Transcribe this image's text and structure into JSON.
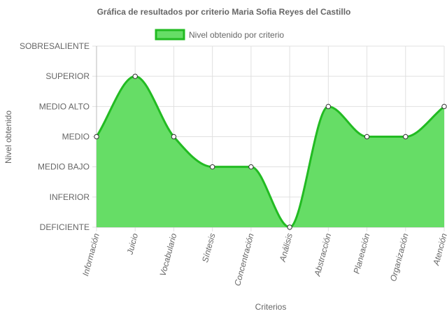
{
  "chart_data": {
    "type": "area",
    "title": "Gráfica de resultados por criterio Maria Sofia Reyes del Castillo",
    "xlabel": "Criterios",
    "ylabel": "Nivel obtenido",
    "y_levels": [
      "DEFICIENTE",
      "INFERIOR",
      "MEDIO BAJO",
      "MEDIO",
      "MEDIO ALTO",
      "SUPERIOR",
      "SOBRESALIENTE"
    ],
    "categories": [
      "Información",
      "Juicio",
      "Vocabulario",
      "Síntesis",
      "Concentración",
      "Análisis",
      "Abstracción",
      "Planeación",
      "Organización",
      "Atención"
    ],
    "series": [
      {
        "name": "Nivel obtenido por criterio",
        "values": [
          "MEDIO",
          "SUPERIOR",
          "MEDIO",
          "MEDIO BAJO",
          "MEDIO BAJO",
          "DEFICIENTE",
          "MEDIO ALTO",
          "MEDIO",
          "MEDIO",
          "MEDIO ALTO"
        ]
      }
    ],
    "grid": true,
    "legend_position": "top",
    "colors": {
      "fill": "#66dd66",
      "line": "#22bb22",
      "point_fill": "#ffffff",
      "point_stroke": "#333333"
    }
  }
}
